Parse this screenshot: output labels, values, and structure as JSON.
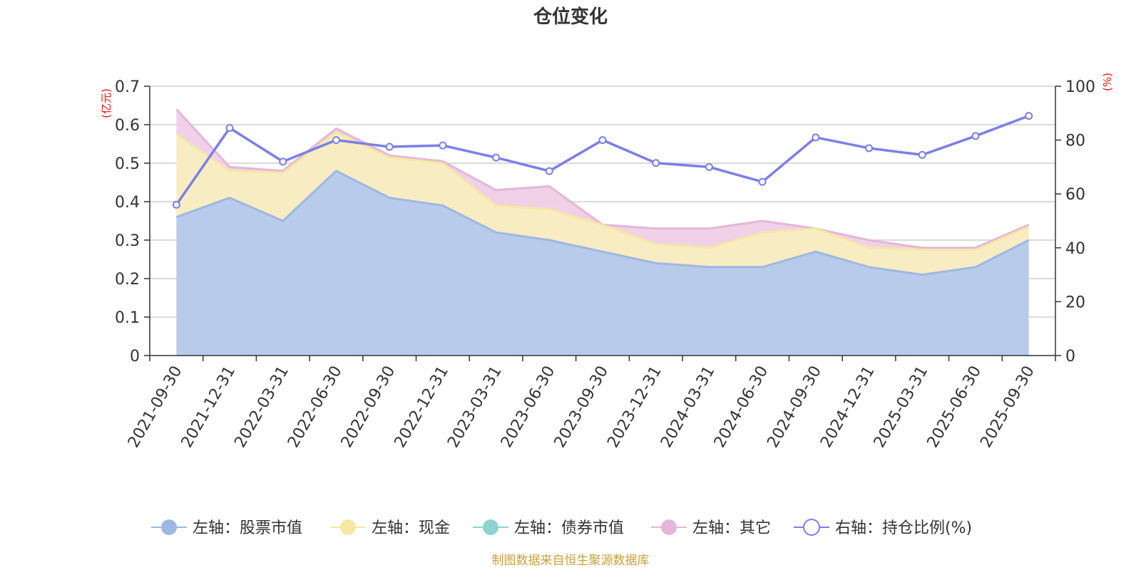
{
  "title": "仓位变化",
  "source": "制图数据来自恒生聚源数据库",
  "colors": {
    "stock": "#9db8e2",
    "stock_fill": "#b8cbea",
    "cash": "#f6e7a4",
    "cash_fill": "#f8edc2",
    "bond": "#8fd3d1",
    "other": "#e5b6d9",
    "other_fill": "#efcfe6",
    "ratio": "#7b7fe8",
    "unit": "#e8120f"
  },
  "chart_data": {
    "type": "area",
    "title": "仓位变化",
    "x": [
      "2021-09-30",
      "2021-12-31",
      "2022-03-31",
      "2022-06-30",
      "2022-09-30",
      "2022-12-31",
      "2023-03-31",
      "2023-06-30",
      "2023-09-30",
      "2023-12-31",
      "2024-03-31",
      "2024-06-30",
      "2024-09-30",
      "2024-12-31",
      "2025-03-31",
      "2025-06-30",
      "2025-09-30"
    ],
    "left_axis": {
      "unit": "(亿元)",
      "ylim": [
        0,
        0.7
      ],
      "ticks": [
        "0",
        "0.1",
        "0.2",
        "0.3",
        "0.4",
        "0.5",
        "0.6",
        "0.7"
      ]
    },
    "right_axis": {
      "unit": "(%)",
      "ylim": [
        0,
        100
      ],
      "ticks": [
        "0",
        "20",
        "40",
        "60",
        "80",
        "100"
      ]
    },
    "series": [
      {
        "name": "左轴：股票市值",
        "axis": "left",
        "kind": "stacked-area",
        "values": [
          0.36,
          0.41,
          0.35,
          0.48,
          0.41,
          0.39,
          0.32,
          0.3,
          0.27,
          0.24,
          0.23,
          0.23,
          0.27,
          0.23,
          0.21,
          0.23,
          0.3
        ]
      },
      {
        "name": "左轴：现金",
        "axis": "left",
        "kind": "stacked-area",
        "values": [
          0.215,
          0.07,
          0.125,
          0.1,
          0.105,
          0.11,
          0.07,
          0.08,
          0.07,
          0.05,
          0.05,
          0.09,
          0.06,
          0.05,
          0.065,
          0.045,
          0.035
        ]
      },
      {
        "name": "左轴：债券市值",
        "axis": "left",
        "kind": "stacked-area",
        "values": [
          0,
          0,
          0,
          0,
          0,
          0,
          0,
          0,
          0,
          0,
          0,
          0,
          0,
          0,
          0,
          0,
          0
        ]
      },
      {
        "name": "左轴：其它",
        "axis": "left",
        "kind": "stacked-area",
        "values": [
          0.065,
          0.01,
          0.005,
          0.01,
          0.005,
          0.005,
          0.04,
          0.06,
          0.0,
          0.04,
          0.05,
          0.03,
          0.0,
          0.02,
          0.005,
          0.005,
          0.005
        ]
      },
      {
        "name": "右轴：持仓比例(%)",
        "axis": "right",
        "kind": "line",
        "values": [
          56,
          84.5,
          72,
          80,
          77.5,
          78,
          73.5,
          68.5,
          80,
          71.5,
          70,
          64.5,
          81,
          77,
          74.5,
          81.5,
          89
        ]
      }
    ]
  }
}
